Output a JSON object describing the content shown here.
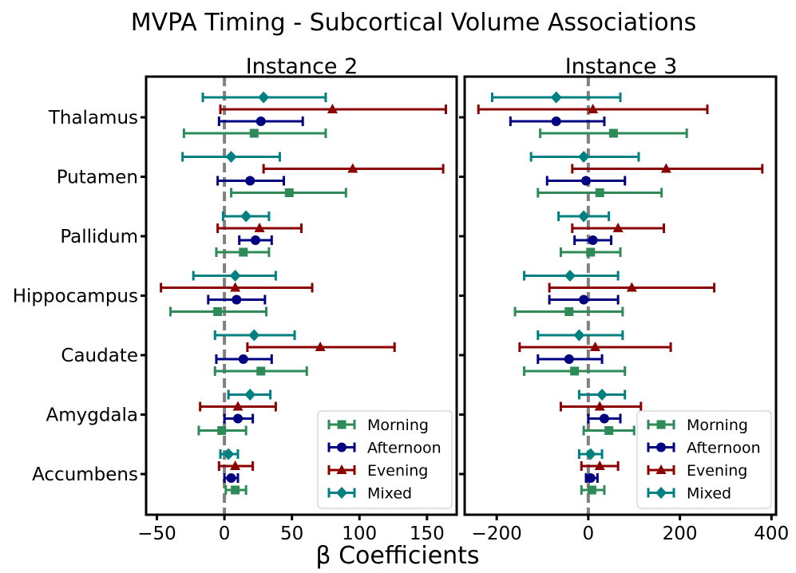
{
  "figure": {
    "title": "MVPA Timing - Subcortical Volume Associations",
    "xlabel": "β Coefficients"
  },
  "legend": {
    "position": "lower-right",
    "entries": [
      {
        "name": "Morning",
        "color": "#2e8b57",
        "marker": "square"
      },
      {
        "name": "Afternoon",
        "color": "#000080",
        "marker": "circle"
      },
      {
        "name": "Evening",
        "color": "#8b0000",
        "marker": "triangle"
      },
      {
        "name": "Mixed",
        "color": "#008080",
        "marker": "diamond"
      }
    ]
  },
  "chart_data": [
    {
      "type": "scatter",
      "subtype": "forest-plot-errorbars",
      "title": "Instance 2",
      "xlabel": "β Coefficients",
      "xlim": [
        -58,
        172
      ],
      "xticks": [
        -50,
        0,
        50,
        100,
        150
      ],
      "xtick_labels": [
        "−50",
        "0",
        "50",
        "100",
        "150"
      ],
      "reference_line": 0,
      "categories": [
        "Thalamus",
        "Putamen",
        "Pallidum",
        "Hippocampus",
        "Caudate",
        "Amygdala",
        "Accumbens"
      ],
      "series": [
        {
          "name": "Morning",
          "marker": "square",
          "color": "#2e8b57",
          "values": [
            22,
            48,
            14,
            -5,
            27,
            -2,
            8
          ],
          "ci_low": [
            -30,
            5,
            -6,
            -40,
            -7,
            -19,
            1
          ],
          "ci_high": [
            75,
            90,
            33,
            31,
            61,
            16,
            16
          ]
        },
        {
          "name": "Afternoon",
          "marker": "circle",
          "color": "#000080",
          "values": [
            27,
            19,
            23,
            9,
            14,
            10,
            5
          ],
          "ci_low": [
            -4,
            -5,
            11,
            -12,
            -6,
            0,
            0
          ],
          "ci_high": [
            58,
            44,
            35,
            30,
            35,
            21,
            10
          ]
        },
        {
          "name": "Evening",
          "marker": "triangle",
          "color": "#8b0000",
          "values": [
            80,
            95,
            26,
            8,
            71,
            10,
            8
          ],
          "ci_low": [
            -3,
            29,
            -5,
            -47,
            17,
            -18,
            -4
          ],
          "ci_high": [
            164,
            162,
            57,
            65,
            126,
            38,
            21
          ]
        },
        {
          "name": "Mixed",
          "marker": "diamond",
          "color": "#008080",
          "values": [
            29,
            5,
            16,
            8,
            22,
            19,
            3
          ],
          "ci_low": [
            -16,
            -31,
            -1,
            -23,
            -7,
            3,
            -3
          ],
          "ci_high": [
            75,
            41,
            33,
            38,
            52,
            34,
            10
          ]
        }
      ]
    },
    {
      "type": "scatter",
      "subtype": "forest-plot-errorbars",
      "title": "Instance 3",
      "xlabel": "β Coefficients",
      "xlim": [
        -270,
        410
      ],
      "xticks": [
        -200,
        0,
        200,
        400
      ],
      "xtick_labels": [
        "−200",
        "0",
        "200",
        "400"
      ],
      "reference_line": 0,
      "categories": [
        "Thalamus",
        "Putamen",
        "Pallidum",
        "Hippocampus",
        "Caudate",
        "Amygdala",
        "Accumbens"
      ],
      "series": [
        {
          "name": "Morning",
          "marker": "square",
          "color": "#2e8b57",
          "values": [
            55,
            25,
            5,
            -42,
            -30,
            45,
            8
          ],
          "ci_low": [
            -105,
            -110,
            -60,
            -160,
            -140,
            -10,
            -15
          ],
          "ci_high": [
            215,
            160,
            70,
            75,
            80,
            100,
            35
          ]
        },
        {
          "name": "Afternoon",
          "marker": "circle",
          "color": "#000080",
          "values": [
            -70,
            -5,
            10,
            -10,
            -42,
            35,
            5
          ],
          "ci_low": [
            -170,
            -90,
            -30,
            -85,
            -110,
            0,
            -5
          ],
          "ci_high": [
            35,
            80,
            50,
            65,
            30,
            70,
            20
          ]
        },
        {
          "name": "Evening",
          "marker": "triangle",
          "color": "#8b0000",
          "values": [
            10,
            170,
            65,
            95,
            15,
            25,
            25
          ],
          "ci_low": [
            -240,
            -35,
            -35,
            -85,
            -150,
            -60,
            -15
          ],
          "ci_high": [
            260,
            380,
            165,
            275,
            180,
            115,
            65
          ]
        },
        {
          "name": "Mixed",
          "marker": "diamond",
          "color": "#008080",
          "values": [
            -70,
            -10,
            -10,
            -40,
            -20,
            30,
            5
          ],
          "ci_low": [
            -210,
            -125,
            -65,
            -140,
            -110,
            -20,
            -20
          ],
          "ci_high": [
            70,
            110,
            45,
            65,
            75,
            80,
            30
          ]
        }
      ]
    }
  ]
}
